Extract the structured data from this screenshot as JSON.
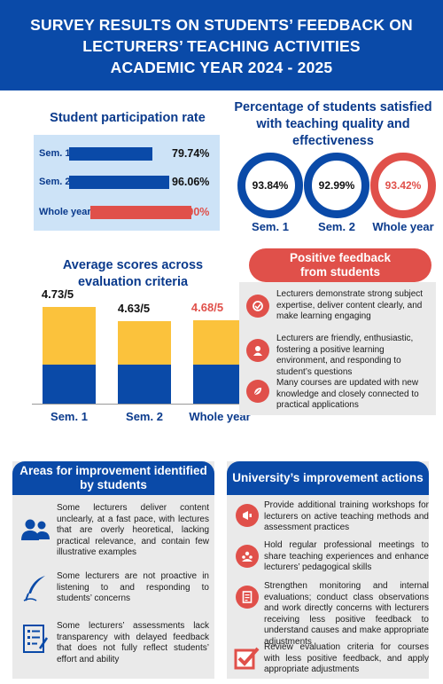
{
  "header": {
    "line1": "SURVEY RESULTS ON STUDENTS’ FEEDBACK ON",
    "line2": "LECTURERS’ TEACHING ACTIVITIES",
    "line3": "ACADEMIC YEAR 2024 - 2025"
  },
  "participation": {
    "title": "Student participation rate",
    "rows": [
      {
        "label": "Sem. 1",
        "value": "79.74%",
        "fraction": 0.7974
      },
      {
        "label": "Sem. 2",
        "value": "96.06%",
        "fraction": 0.9606
      },
      {
        "label": "Whole year",
        "value": "87.90%",
        "fraction": 0.879
      }
    ]
  },
  "satisfaction": {
    "title_line1": "Percentage of students satisfied",
    "title_line2": "with teaching quality and",
    "title_line3": "effectiveness",
    "items": [
      {
        "label": "Sem. 1",
        "value": "93.84%"
      },
      {
        "label": "Sem. 2",
        "value": "92.99%"
      },
      {
        "label": "Whole year",
        "value": "93.42%"
      }
    ]
  },
  "scores": {
    "title_line1": "Average scores across",
    "title_line2": "evaluation criteria",
    "items": [
      {
        "label": "Sem. 1",
        "value": "4.73/5",
        "score": 4.73
      },
      {
        "label": "Sem. 2",
        "value": "4.63/5",
        "score": 4.63
      },
      {
        "label": "Whole year",
        "value": "4.68/5",
        "score": 4.68
      }
    ]
  },
  "positive": {
    "title_line1": "Positive feedback",
    "title_line2": "from students",
    "items": [
      "Lecturers demonstrate strong subject expertise, deliver content clearly, and make learning engaging",
      "Lecturers are friendly, enthusiastic, fostering a positive learning environment, and responding to student’s questions",
      "Many courses are updated with new knowledge and closely connected to practical applications"
    ]
  },
  "improvement": {
    "title_line1": "Areas for improvement identified",
    "title_line2": "by students",
    "items": [
      "Some lecturers deliver content unclearly, at a fast pace, with lectures that are overly heoretical, lacking practical relevance, and contain few illustrative examples",
      "Some lecturers are not proactive in listening to and responding to students’ concerns",
      "Some lecturers’ assessments lack transparency with delayed feedback that does not fully reflect students’ effort and ability"
    ]
  },
  "actions": {
    "title": "University’s improvement actions",
    "items": [
      "Provide additional training workshops for lecturers on active teaching methods and assessment practices",
      "Hold regular professional meetings to share teaching experiences and enhance lecturers’ pedagogical skills",
      "Strengthen monitoring and internal evaluations; conduct class observations and work directly concerns with lecturers receiving less positive feedback to understand causes and make appropriate adjustments",
      "Review evaluation criteria for courses with less positive feedback, and apply appropriate adjustments"
    ]
  },
  "colors": {
    "primary_blue": "#0a4aa8",
    "accent_red": "#e0504a",
    "accent_yellow": "#fbc23c",
    "light_blue_panel": "#cde3f7",
    "grey_panel": "#eaeaea"
  }
}
